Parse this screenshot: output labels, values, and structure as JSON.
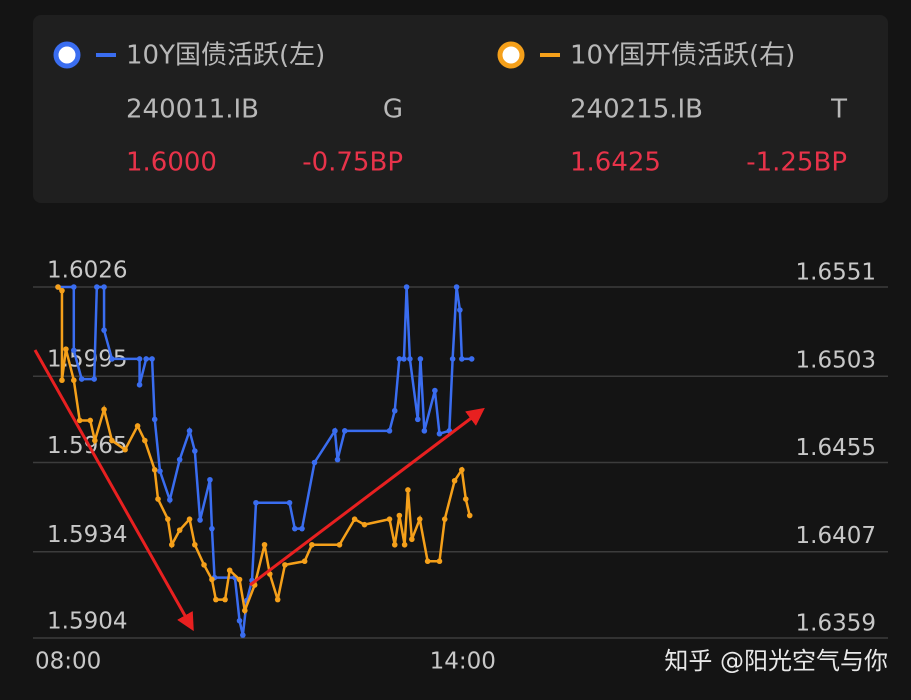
{
  "chart_data": {
    "type": "line",
    "series": [
      {
        "name": "10Y国债活跃(左)",
        "code": "240011.IB",
        "tag": "G",
        "price": "1.6000",
        "change": "-0.75BP",
        "color": "#3a6df0",
        "axis": "y",
        "x": [
          8.35,
          8.59,
          8.59,
          8.71,
          8.9,
          8.94,
          9.05,
          9.05,
          9.17,
          9.59,
          9.59,
          9.69,
          9.78,
          9.82,
          9.9,
          10.05,
          10.2,
          10.35,
          10.43,
          10.51,
          10.66,
          10.69,
          10.73,
          11.04,
          11.11,
          11.16,
          11.22,
          11.3,
          11.36,
          11.87,
          11.95,
          12.06,
          12.25,
          12.56,
          12.6,
          12.71,
          13.39,
          13.47,
          13.54,
          13.61,
          13.65,
          13.7,
          13.82,
          13.86,
          13.92,
          14.08,
          14.15,
          14.3,
          14.35,
          14.41,
          14.46,
          14.49,
          14.64
        ],
        "values": [
          1.6026,
          1.6026,
          1.6004,
          1.5994,
          1.5994,
          1.6026,
          1.6026,
          1.6011,
          1.6001,
          1.6001,
          1.5992,
          1.6001,
          1.6001,
          1.598,
          1.5962,
          1.5952,
          1.5966,
          1.5976,
          1.5969,
          1.5945,
          1.5959,
          1.5942,
          1.5925,
          1.5925,
          1.591,
          1.5905,
          1.5917,
          1.5924,
          1.5951,
          1.5951,
          1.5942,
          1.5942,
          1.5965,
          1.5976,
          1.5966,
          1.5976,
          1.5976,
          1.5983,
          1.6001,
          1.6001,
          1.6026,
          1.6001,
          1.598,
          1.6001,
          1.5976,
          1.599,
          1.5975,
          1.5976,
          1.6001,
          1.6026,
          1.6018,
          1.6001,
          1.6001
        ]
      },
      {
        "name": "10Y国开债活跃(右)",
        "code": "240215.IB",
        "tag": "T",
        "price": "1.6425",
        "change": "-1.25BP",
        "color": "#f5a01a",
        "axis": "y2",
        "x": [
          8.35,
          8.41,
          8.41,
          8.47,
          8.59,
          8.68,
          8.84,
          8.91,
          9.05,
          9.17,
          9.37,
          9.56,
          9.67,
          9.82,
          9.87,
          10.02,
          10.08,
          10.2,
          10.35,
          10.43,
          10.57,
          10.69,
          10.75,
          10.89,
          10.96,
          11.11,
          11.19,
          11.34,
          11.49,
          11.57,
          11.69,
          11.8,
          12.1,
          12.21,
          12.63,
          12.86,
          13.01,
          13.39,
          13.47,
          13.54,
          13.62,
          13.67,
          13.73,
          13.85,
          13.97,
          14.15,
          14.23,
          14.38,
          14.49,
          14.55,
          14.61
        ],
        "values": [
          1.6551,
          1.6549,
          1.65,
          1.6517,
          1.65,
          1.6478,
          1.6478,
          1.6467,
          1.6484,
          1.6467,
          1.6462,
          1.6475,
          1.6467,
          1.6451,
          1.6435,
          1.6424,
          1.641,
          1.6418,
          1.6424,
          1.641,
          1.6399,
          1.6391,
          1.638,
          1.638,
          1.6396,
          1.6391,
          1.6374,
          1.6388,
          1.641,
          1.6394,
          1.638,
          1.6399,
          1.6401,
          1.641,
          1.641,
          1.6424,
          1.6421,
          1.6424,
          1.641,
          1.6426,
          1.641,
          1.644,
          1.6413,
          1.6424,
          1.6401,
          1.6401,
          1.6424,
          1.6445,
          1.6451,
          1.6435,
          1.6426
        ]
      }
    ],
    "xlim": [
      8,
      21
    ],
    "xticks": [
      {
        "value": 8,
        "label": "08:00"
      },
      {
        "value": 14,
        "label": "14:00"
      }
    ],
    "ylim": [
      1.5904,
      1.6026
    ],
    "yticks": [
      1.5904,
      1.5934,
      1.5965,
      1.5995,
      1.6026
    ],
    "y2lim": [
      1.6359,
      1.6551
    ],
    "y2ticks": [
      1.6359,
      1.6407,
      1.6455,
      1.6503,
      1.6551
    ],
    "grid": true
  },
  "watermark": "知乎 @阳光空气与你"
}
